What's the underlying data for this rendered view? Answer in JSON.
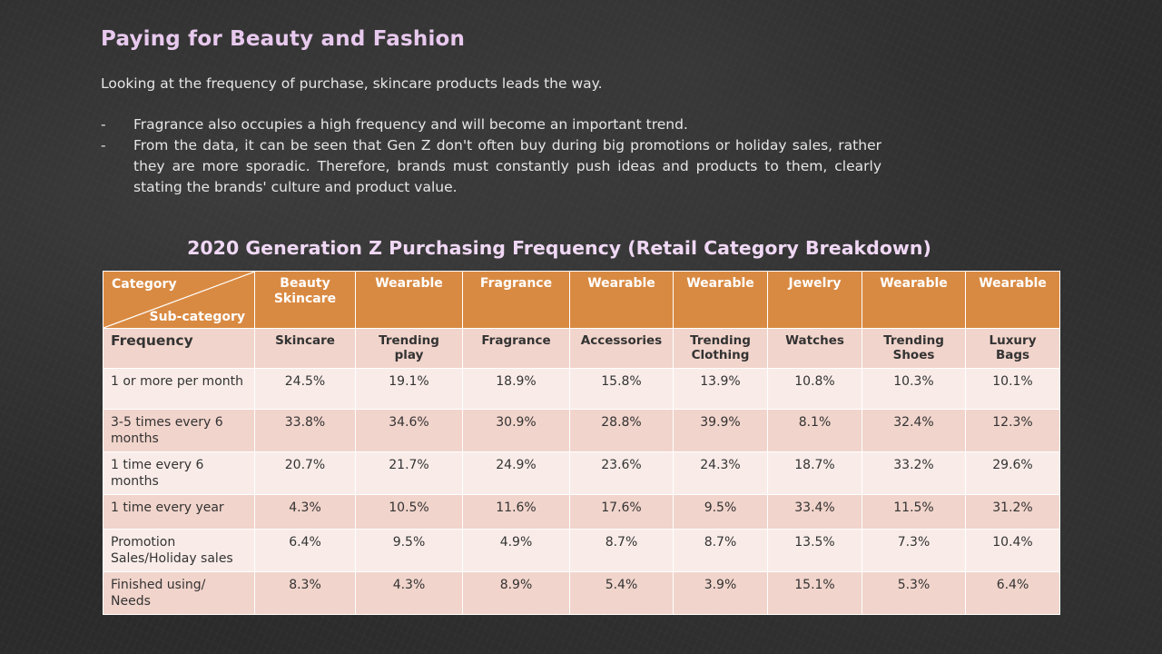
{
  "title": "Paying for Beauty and Fashion",
  "intro": "Looking at the frequency of purchase, skincare products leads the way.",
  "bullets": [
    "Fragrance also occupies a high frequency and will become an important trend.",
    "From the data, it can be seen that Gen Z don't often buy during big promotions or holiday sales, rather they are more sporadic.  Therefore, brands must constantly push ideas and products to them, clearly stating the brands' culture and product value."
  ],
  "bullet_marker": "-",
  "table": {
    "title": "2020 Generation Z Purchasing Frequency (Retail Category Breakdown)",
    "corner_top": "Category",
    "corner_bottom": "Sub-category",
    "frequency_label": "Frequency",
    "categories": [
      "Beauty Skincare",
      "Wearable",
      "Fragrance",
      "Wearable",
      "Wearable",
      "Jewelry",
      "Wearable",
      "Wearable"
    ],
    "subcategories": [
      "Skincare",
      "Trending play",
      "Fragrance",
      "Accessories",
      "Trending Clothing",
      "Watches",
      "Trending Shoes",
      "Luxury Bags"
    ],
    "rows": [
      {
        "label": "1 or more per month",
        "values": [
          "24.5%",
          "19.1%",
          "18.9%",
          "15.8%",
          "13.9%",
          "10.8%",
          "10.3%",
          "10.1%"
        ]
      },
      {
        "label": "3-5 times every 6 months",
        "values": [
          "33.8%",
          "34.6%",
          "30.9%",
          "28.8%",
          "39.9%",
          "8.1%",
          "32.4%",
          "12.3%"
        ]
      },
      {
        "label": "1 time every 6 months",
        "values": [
          "20.7%",
          "21.7%",
          "24.9%",
          "23.6%",
          "24.3%",
          "18.7%",
          "33.2%",
          "29.6%"
        ]
      },
      {
        "label": "1 time every year",
        "values": [
          "4.3%",
          "10.5%",
          "11.6%",
          "17.6%",
          "9.5%",
          "33.4%",
          "11.5%",
          "31.2%"
        ]
      },
      {
        "label": "Promotion Sales/Holiday sales",
        "values": [
          "6.4%",
          "9.5%",
          "4.9%",
          "8.7%",
          "8.7%",
          "13.5%",
          "7.3%",
          "10.4%"
        ]
      },
      {
        "label": "Finished using/ Needs",
        "values": [
          "8.3%",
          "4.3%",
          "8.9%",
          "5.4%",
          "3.9%",
          "15.1%",
          "5.3%",
          "6.4%"
        ]
      }
    ]
  },
  "colors": {
    "title": "#e8c9ee",
    "header_fill": "#d98a42",
    "row_light": "#f9ece8",
    "row_dark": "#f1d4cb",
    "background": "#2b2b2b"
  }
}
